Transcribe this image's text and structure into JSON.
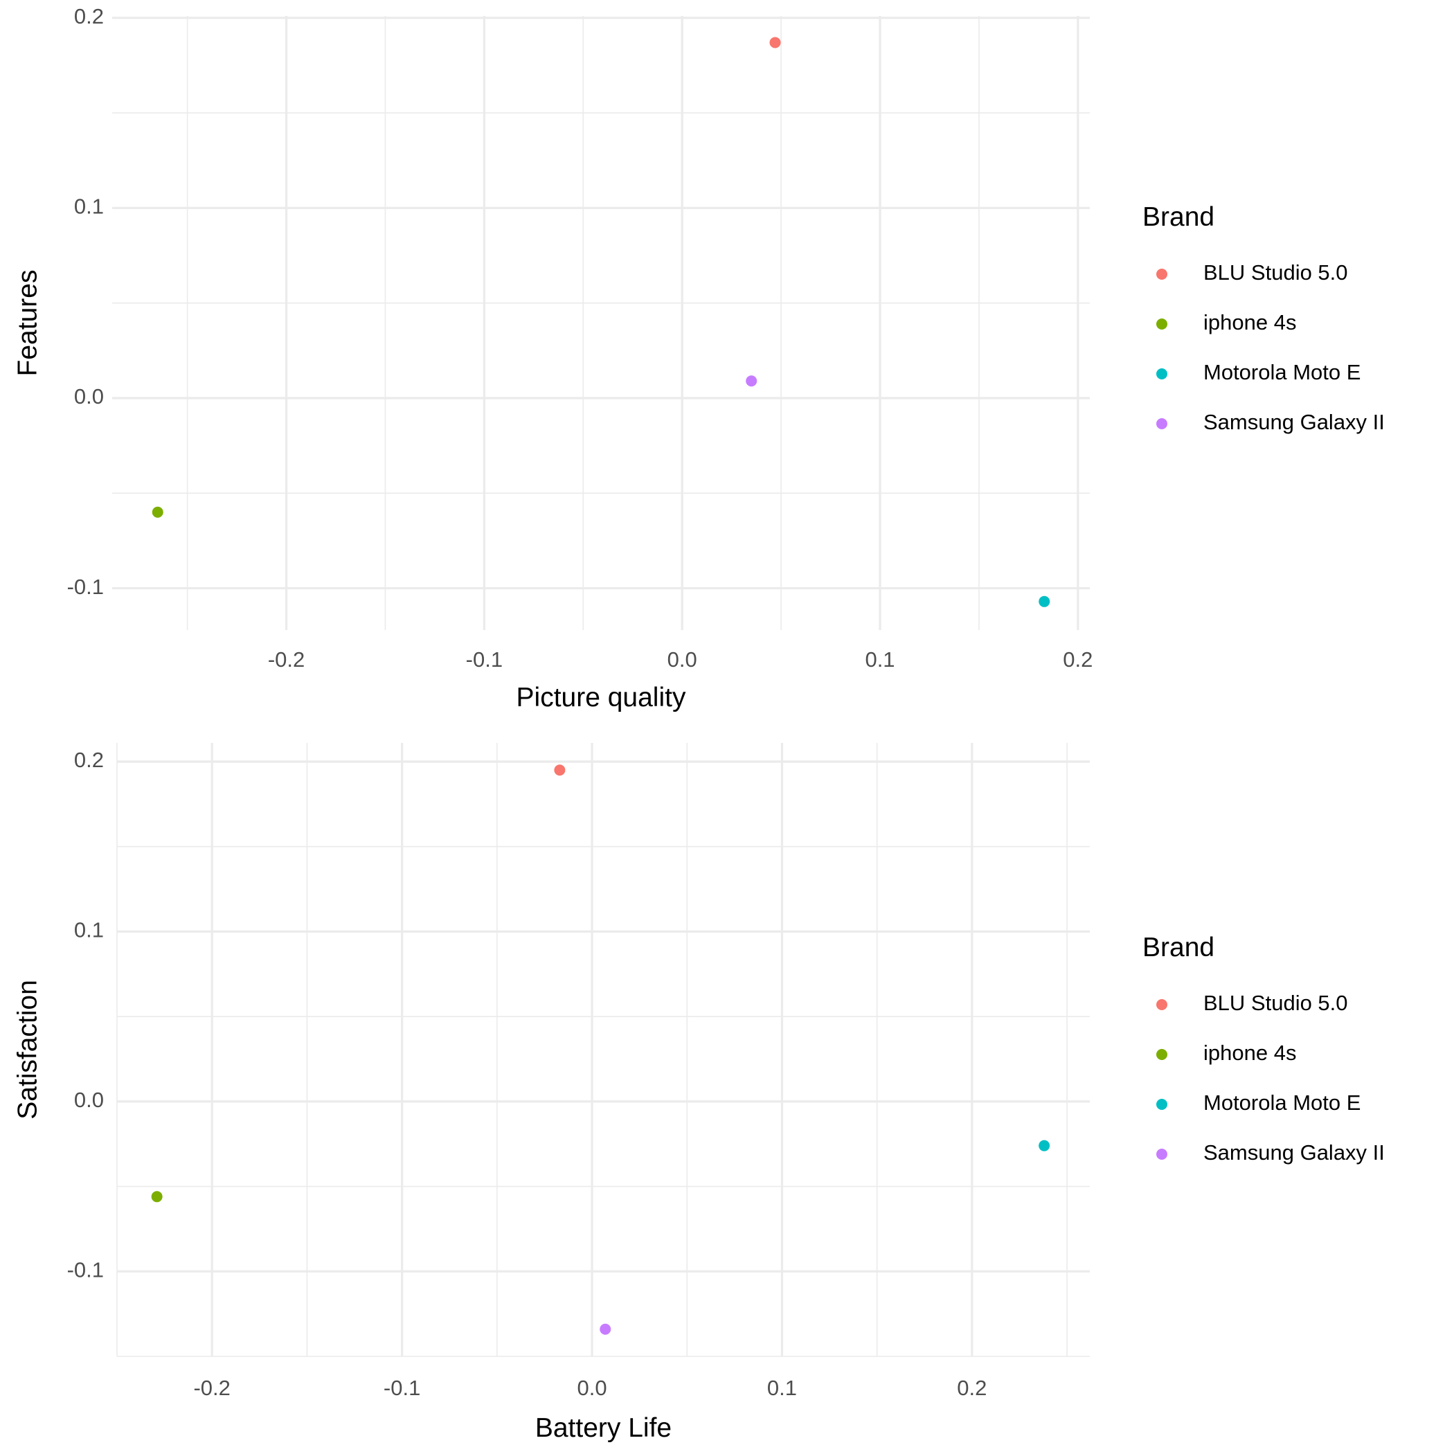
{
  "chart_data": [
    {
      "type": "scatter",
      "title": "",
      "xlabel": "Picture quality",
      "ylabel": "Features",
      "xlim": [
        -0.288,
        0.206
      ],
      "ylim": [
        -0.122,
        0.201
      ],
      "x_ticks": [
        -0.2,
        -0.1,
        0.0,
        0.1,
        0.2
      ],
      "x_tick_labels": [
        "-0.2",
        "-0.1",
        "0.0",
        "0.1",
        "0.2"
      ],
      "y_ticks": [
        -0.1,
        0.0,
        0.1,
        0.2
      ],
      "y_tick_labels": [
        "-0.1",
        "0.0",
        "0.1",
        "0.2"
      ],
      "grid": true,
      "legend": {
        "title": "Brand",
        "position": "right",
        "entries": [
          "BLU Studio 5.0",
          "iphone 4s",
          "Motorola Moto E",
          "Samsung Galaxy II"
        ]
      },
      "series": [
        {
          "name": "BLU Studio 5.0",
          "color": "#F8766D",
          "x": [
            0.047
          ],
          "y": [
            0.187
          ]
        },
        {
          "name": "iphone 4s",
          "color": "#7CAE00",
          "x": [
            -0.265
          ],
          "y": [
            -0.06
          ]
        },
        {
          "name": "Motorola Moto E",
          "color": "#00BFC4",
          "x": [
            0.183
          ],
          "y": [
            -0.107
          ]
        },
        {
          "name": "Samsung Galaxy II",
          "color": "#C77CFF",
          "x": [
            0.035
          ],
          "y": [
            0.009
          ]
        }
      ]
    },
    {
      "type": "scatter",
      "title": "",
      "xlabel": "Battery Life",
      "ylabel": "Satisfaction",
      "xlim": [
        -0.25,
        0.262
      ],
      "ylim": [
        -0.15,
        0.211
      ],
      "x_ticks": [
        -0.2,
        -0.1,
        0.0,
        0.1,
        0.2
      ],
      "x_tick_labels": [
        "-0.2",
        "-0.1",
        "0.0",
        "0.1",
        "0.2"
      ],
      "y_ticks": [
        -0.1,
        0.0,
        0.1,
        0.2
      ],
      "y_tick_labels": [
        "-0.1",
        "0.0",
        "0.1",
        "0.2"
      ],
      "grid": true,
      "legend": {
        "title": "Brand",
        "position": "right",
        "entries": [
          "BLU Studio 5.0",
          "iphone 4s",
          "Motorola Moto E",
          "Samsung Galaxy II"
        ]
      },
      "series": [
        {
          "name": "BLU Studio 5.0",
          "color": "#F8766D",
          "x": [
            -0.017
          ],
          "y": [
            0.195
          ]
        },
        {
          "name": "iphone 4s",
          "color": "#7CAE00",
          "x": [
            -0.229
          ],
          "y": [
            -0.056
          ]
        },
        {
          "name": "Motorola Moto E",
          "color": "#00BFC4",
          "x": [
            0.238
          ],
          "y": [
            -0.026
          ]
        },
        {
          "name": "Samsung Galaxy II",
          "color": "#C77CFF",
          "x": [
            0.007
          ],
          "y": [
            -0.134
          ]
        }
      ]
    }
  ]
}
